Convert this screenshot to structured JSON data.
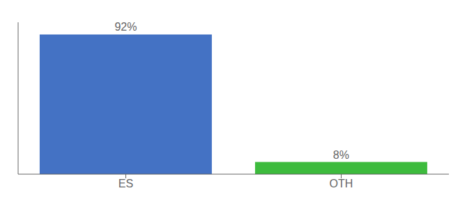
{
  "chart_data": {
    "type": "bar",
    "categories": [
      "ES",
      "OTH"
    ],
    "values": [
      92,
      8
    ],
    "value_labels": [
      "92%",
      "8%"
    ],
    "colors": [
      "#4472c4",
      "#3dbb3d"
    ],
    "ylim": [
      0,
      100
    ],
    "yticks": [],
    "tick_labels": "x",
    "grid": false,
    "data_labels": true
  }
}
